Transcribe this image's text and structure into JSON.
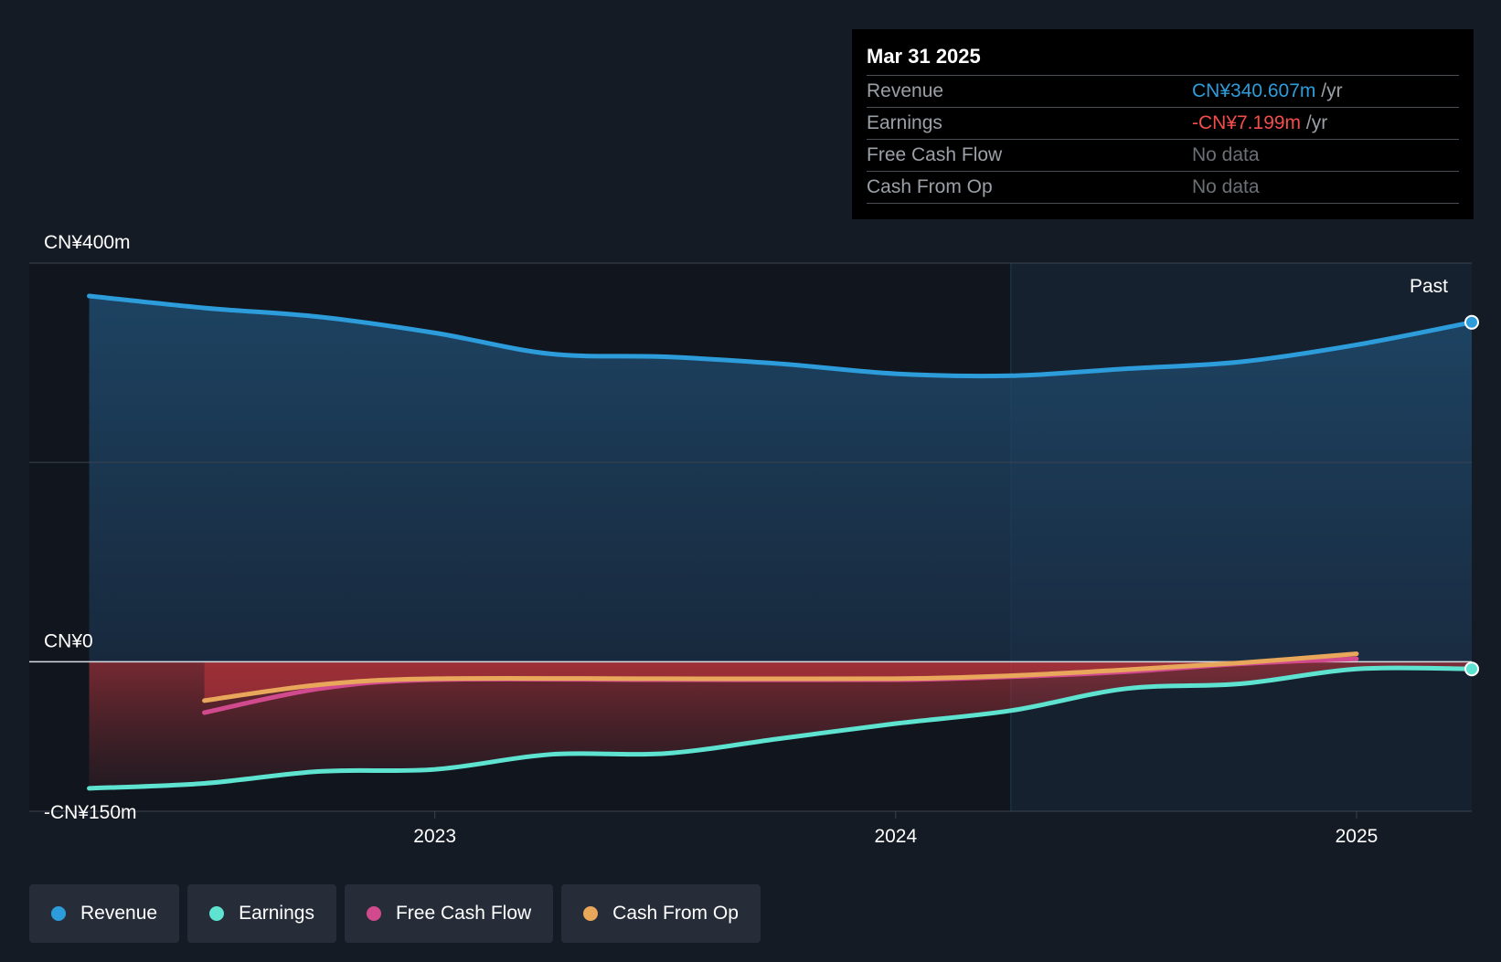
{
  "chart_data": {
    "type": "area",
    "y_axis_labels": [
      "CN¥400m",
      "CN¥0",
      "-CN¥150m"
    ],
    "ylim": [
      -150,
      400
    ],
    "y_unit": "CN¥m",
    "x_ticks": [
      {
        "label": "2023",
        "x": 2023.0
      },
      {
        "label": "2024",
        "x": 2024.0
      },
      {
        "label": "2025",
        "x": 2025.0
      }
    ],
    "xlim": [
      2022.12,
      2025.25
    ],
    "past_label": "Past",
    "past_region_start": 2024.25,
    "series": [
      {
        "name": "Revenue",
        "color": "#2d9cdb",
        "points": [
          [
            2022.25,
            367
          ],
          [
            2022.5,
            355
          ],
          [
            2022.75,
            346
          ],
          [
            2023.0,
            330
          ],
          [
            2023.25,
            309
          ],
          [
            2023.5,
            306
          ],
          [
            2023.75,
            299
          ],
          [
            2024.0,
            289
          ],
          [
            2024.25,
            287
          ],
          [
            2024.5,
            294
          ],
          [
            2024.75,
            301
          ],
          [
            2025.0,
            318
          ],
          [
            2025.25,
            340.6
          ]
        ]
      },
      {
        "name": "Earnings",
        "color": "#5ee3d1",
        "points": [
          [
            2022.25,
            -127
          ],
          [
            2022.5,
            -122
          ],
          [
            2022.75,
            -110
          ],
          [
            2023.0,
            -108
          ],
          [
            2023.25,
            -93
          ],
          [
            2023.5,
            -92
          ],
          [
            2023.75,
            -77
          ],
          [
            2024.0,
            -62
          ],
          [
            2024.25,
            -49
          ],
          [
            2024.5,
            -27
          ],
          [
            2024.75,
            -22
          ],
          [
            2025.0,
            -7.2
          ],
          [
            2025.25,
            -7.2
          ]
        ]
      },
      {
        "name": "Free Cash Flow",
        "color": "#d24a8e",
        "points": [
          [
            2022.5,
            -51
          ],
          [
            2022.75,
            -27
          ],
          [
            2023.0,
            -18
          ],
          [
            2023.5,
            -18
          ],
          [
            2024.0,
            -18
          ],
          [
            2024.25,
            -15
          ],
          [
            2024.5,
            -10
          ],
          [
            2024.75,
            -2
          ],
          [
            2025.0,
            3
          ]
        ]
      },
      {
        "name": "Cash From Op",
        "color": "#e8a75b",
        "points": [
          [
            2022.5,
            -39
          ],
          [
            2022.75,
            -23
          ],
          [
            2023.0,
            -17
          ],
          [
            2023.5,
            -17
          ],
          [
            2024.0,
            -17
          ],
          [
            2024.25,
            -14
          ],
          [
            2024.5,
            -8
          ],
          [
            2024.75,
            -1
          ],
          [
            2025.0,
            8
          ]
        ]
      }
    ],
    "tooltip": {
      "date": "Mar 31 2025",
      "rows": [
        {
          "label": "Revenue",
          "value": "CN¥340.607m",
          "unit": "/yr"
        },
        {
          "label": "Earnings",
          "value": "-CN¥7.199m",
          "unit": "/yr"
        },
        {
          "label": "Free Cash Flow",
          "value": "No data",
          "unit": ""
        },
        {
          "label": "Cash From Op",
          "value": "No data",
          "unit": ""
        }
      ]
    },
    "legend": [
      {
        "label": "Revenue",
        "color": "#2d9cdb"
      },
      {
        "label": "Earnings",
        "color": "#5ee3d1"
      },
      {
        "label": "Free Cash Flow",
        "color": "#d24a8e"
      },
      {
        "label": "Cash From Op",
        "color": "#e8a75b"
      }
    ]
  }
}
